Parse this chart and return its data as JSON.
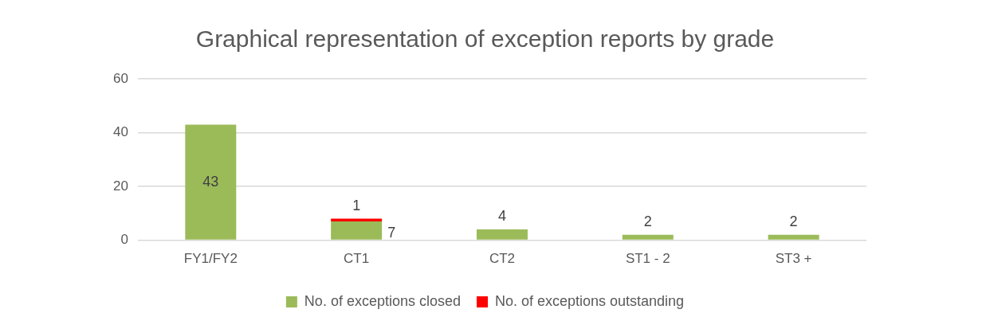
{
  "chart_data": {
    "type": "bar",
    "title": "Graphical representation of exception reports by grade",
    "categories": [
      "FY1/FY2",
      "CT1",
      "CT2",
      "ST1 - 2",
      "ST3 +"
    ],
    "series": [
      {
        "name": "No. of exceptions closed",
        "color": "#9bbb59",
        "values": [
          43,
          7,
          4,
          2,
          2
        ]
      },
      {
        "name": "No. of exceptions outstanding",
        "color": "#ff0000",
        "values": [
          null,
          1,
          null,
          null,
          null
        ]
      }
    ],
    "stacked": true,
    "ylim": [
      0,
      60
    ],
    "yticks": [
      0,
      20,
      40,
      60
    ],
    "grid": "y",
    "legend": "bottom",
    "data_labels": true
  }
}
